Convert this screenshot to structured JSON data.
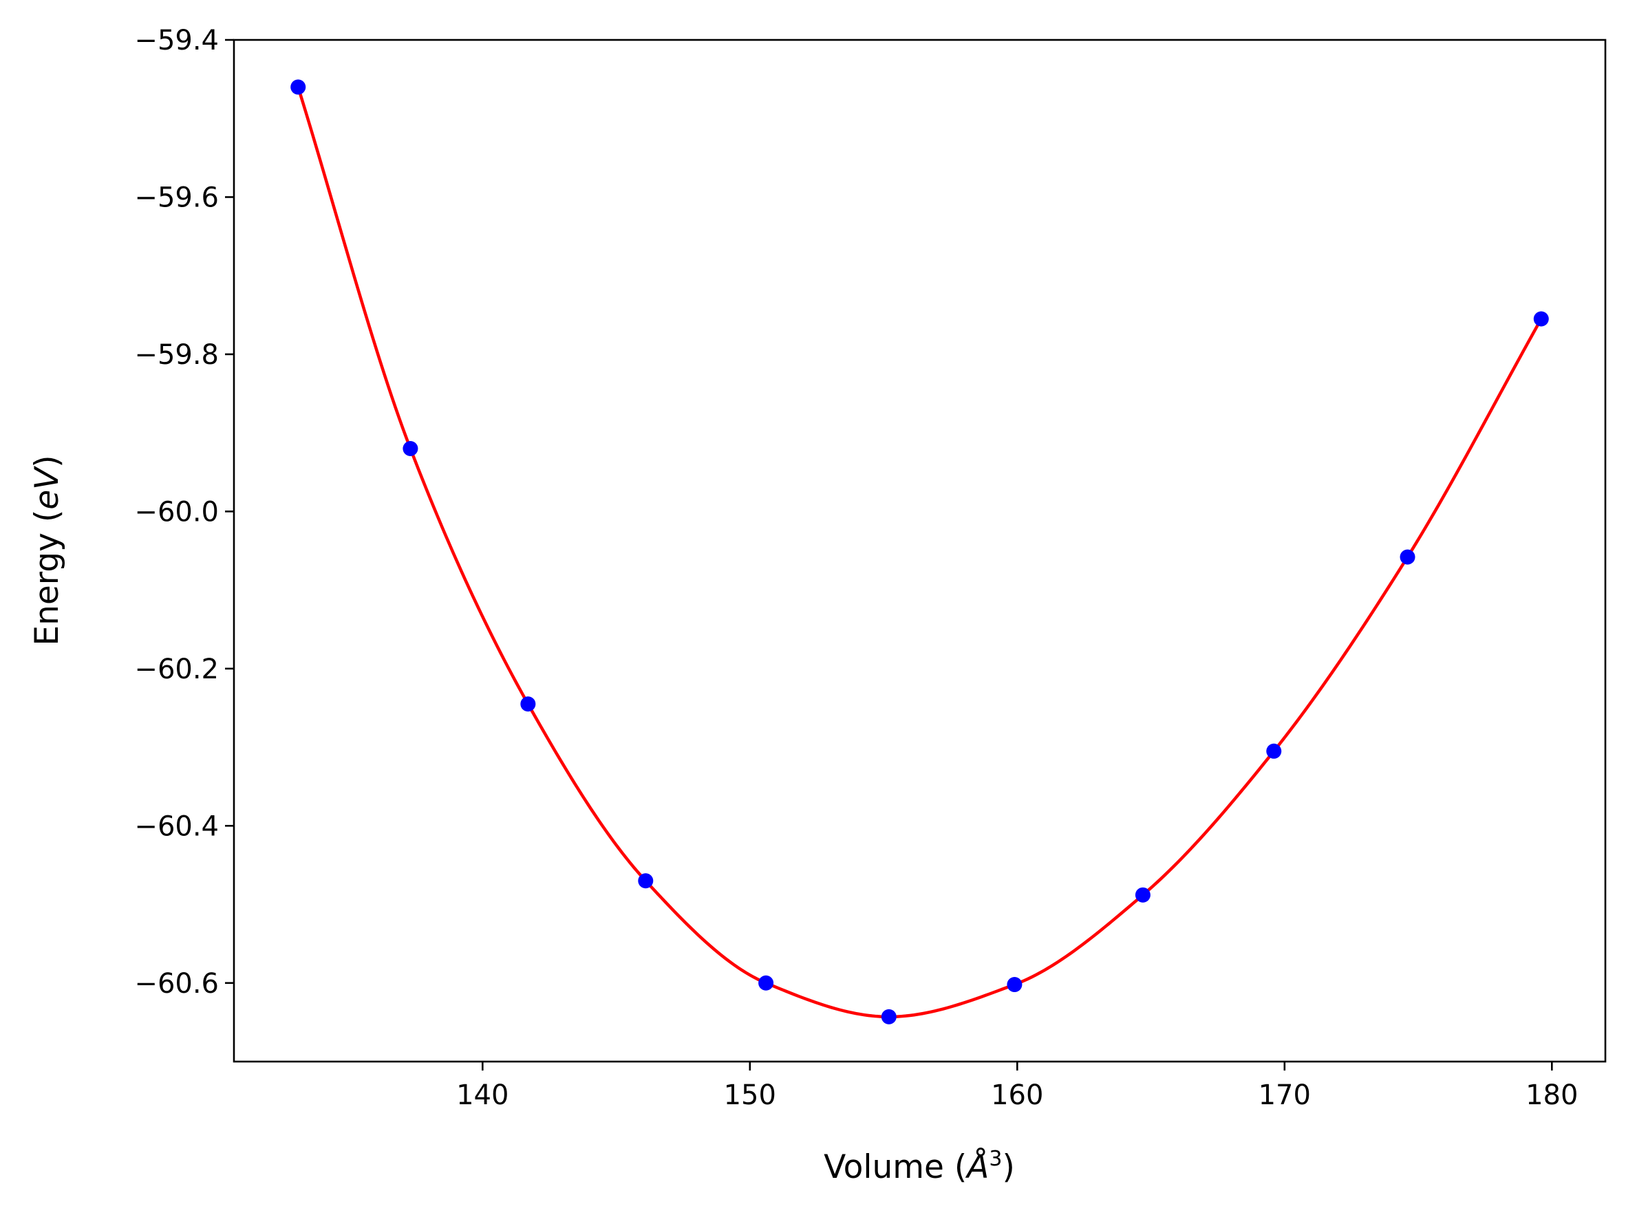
{
  "chart_data": {
    "type": "scatter",
    "xlabel": {
      "prefix": "Volume (",
      "unit": "Å",
      "sup": "3",
      "suffix": ")"
    },
    "ylabel": {
      "prefix": "Energy (",
      "unit": "eV",
      "suffix": ")"
    },
    "xlim": [
      130.7,
      182.0
    ],
    "ylim": [
      -60.7,
      -59.4
    ],
    "x_ticks": [
      {
        "value": 140,
        "label": "140"
      },
      {
        "value": 150,
        "label": "150"
      },
      {
        "value": 160,
        "label": "160"
      },
      {
        "value": 170,
        "label": "170"
      },
      {
        "value": 180,
        "label": "180"
      }
    ],
    "y_ticks": [
      {
        "value": -59.4,
        "label": "−59.4"
      },
      {
        "value": -59.6,
        "label": "−59.6"
      },
      {
        "value": -59.8,
        "label": "−59.8"
      },
      {
        "value": -60.0,
        "label": "−60.0"
      },
      {
        "value": -60.2,
        "label": "−60.2"
      },
      {
        "value": -60.4,
        "label": "−60.4"
      },
      {
        "value": -60.6,
        "label": "−60.6"
      }
    ],
    "grid": false,
    "legend": "none",
    "series": [
      {
        "kind": "points",
        "color": "#0000ff",
        "x": [
          133.1,
          137.3,
          141.7,
          146.1,
          150.6,
          155.2,
          159.9,
          164.7,
          169.6,
          174.6,
          179.6
        ],
        "y": [
          -59.46,
          -59.92,
          -60.245,
          -60.47,
          -60.6,
          -60.643,
          -60.602,
          -60.488,
          -60.305,
          -60.058,
          -59.755
        ]
      },
      {
        "kind": "fit-line",
        "color": "#ff0000"
      }
    ]
  }
}
